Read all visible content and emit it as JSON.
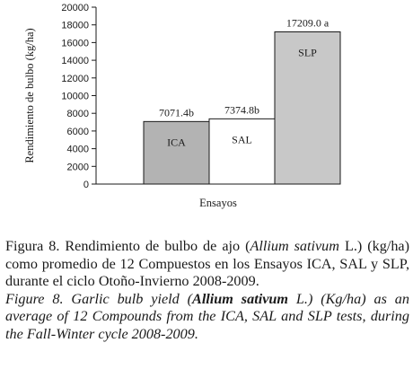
{
  "chart_data": {
    "type": "bar",
    "categories": [
      "ICA",
      "SAL",
      "SLP"
    ],
    "values": [
      7071.4,
      7374.8,
      17209.0
    ],
    "data_labels": [
      "7071.4b",
      "7374.8b",
      "17209.0 a"
    ],
    "bar_colors": [
      "#b3b3b3",
      "#ffffff",
      "#c8c8c8"
    ],
    "ylabel": "Rendimiento de bulbo (kg/ha)",
    "xlabel": "Ensayos",
    "ylim": [
      0,
      20000
    ],
    "yticks": [
      0,
      2000,
      4000,
      6000,
      8000,
      10000,
      12000,
      14000,
      16000,
      18000,
      20000
    ],
    "ytick_labels": [
      "0",
      "2000",
      "4000",
      "6000",
      "8000",
      "10000",
      "12000",
      "14000",
      "16000",
      "18000",
      "20000"
    ],
    "grid": false,
    "legend": "none"
  },
  "caption": {
    "es_prefix": "Figura 8. Rendimiento de bulbo de ajo (",
    "es_species": "Allium sativum",
    "es_suffix": " L.) (kg/ha) como promedio de 12 Compuestos en los Ensayos ICA, SAL y SLP, durante el ciclo Otoño-Invierno 2008-2009.",
    "en_prefix": "Figure 8. Garlic bulb yield (",
    "en_species": "Allium sativum",
    "en_suffix": " L.) (Kg/ha) as an average of 12 Compounds from the ICA, SAL and SLP tests, during the Fall-Winter cycle 2008-2009."
  }
}
